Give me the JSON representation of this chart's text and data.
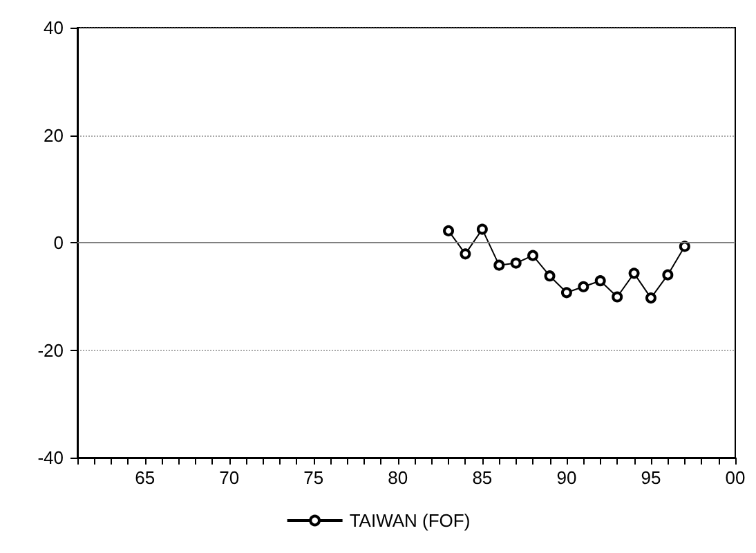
{
  "chart_data": {
    "type": "line",
    "x": [
      "1983",
      "1984",
      "1985",
      "1986",
      "1987",
      "1988",
      "1989",
      "1990",
      "1991",
      "1992",
      "1993",
      "1994",
      "1995",
      "1996",
      "1997"
    ],
    "series": [
      {
        "name": "TAIWAN (FOF)",
        "color": "#000000",
        "values": [
          2.2,
          -2.1,
          2.5,
          -4.2,
          -3.8,
          -2.4,
          -6.2,
          -9.3,
          -8.2,
          -7.1,
          -10.1,
          -5.7,
          -10.3,
          -6.0,
          -0.7
        ]
      }
    ],
    "xlim": [
      "1961",
      "2000"
    ],
    "xticks": [
      {
        "value": "1961",
        "label": null
      },
      {
        "value": "1962",
        "label": null
      },
      {
        "value": "1963",
        "label": null
      },
      {
        "value": "1964",
        "label": null
      },
      {
        "value": "1965",
        "label": "65"
      },
      {
        "value": "1966",
        "label": null
      },
      {
        "value": "1967",
        "label": null
      },
      {
        "value": "1968",
        "label": null
      },
      {
        "value": "1969",
        "label": null
      },
      {
        "value": "1970",
        "label": "70"
      },
      {
        "value": "1971",
        "label": null
      },
      {
        "value": "1972",
        "label": null
      },
      {
        "value": "1973",
        "label": null
      },
      {
        "value": "1974",
        "label": null
      },
      {
        "value": "1975",
        "label": "75"
      },
      {
        "value": "1976",
        "label": null
      },
      {
        "value": "1977",
        "label": null
      },
      {
        "value": "1978",
        "label": null
      },
      {
        "value": "1979",
        "label": null
      },
      {
        "value": "1980",
        "label": "80"
      },
      {
        "value": "1981",
        "label": null
      },
      {
        "value": "1982",
        "label": null
      },
      {
        "value": "1983",
        "label": null
      },
      {
        "value": "1984",
        "label": null
      },
      {
        "value": "1985",
        "label": "85"
      },
      {
        "value": "1986",
        "label": null
      },
      {
        "value": "1987",
        "label": null
      },
      {
        "value": "1988",
        "label": null
      },
      {
        "value": "1989",
        "label": null
      },
      {
        "value": "1990",
        "label": "90"
      },
      {
        "value": "1991",
        "label": null
      },
      {
        "value": "1992",
        "label": null
      },
      {
        "value": "1993",
        "label": null
      },
      {
        "value": "1994",
        "label": null
      },
      {
        "value": "1995",
        "label": "95"
      },
      {
        "value": "1996",
        "label": null
      },
      {
        "value": "1997",
        "label": null
      },
      {
        "value": "1998",
        "label": null
      },
      {
        "value": "1999",
        "label": null
      },
      {
        "value": "2000",
        "label": "00"
      }
    ],
    "ylim": [
      -40,
      40
    ],
    "yticks": [
      -40,
      -20,
      0,
      20,
      40
    ],
    "grid": "y",
    "ref_lines": [
      {
        "axis": "y",
        "value": 0,
        "color": "#808080",
        "line_style": "solid"
      }
    ],
    "legend": "bottom",
    "marker": "circle",
    "line_style": "solid"
  }
}
